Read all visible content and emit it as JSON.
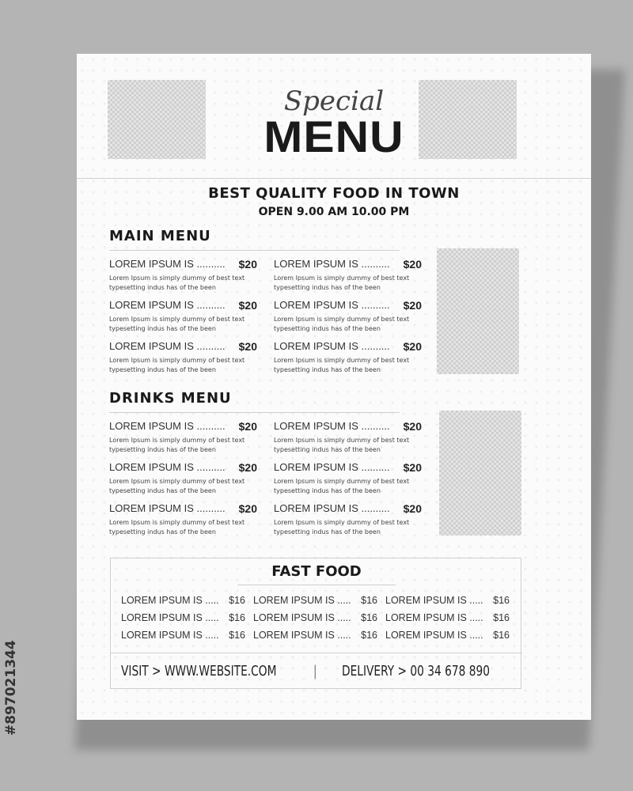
{
  "header": {
    "script_title": "Special",
    "title": "MENU",
    "tagline": "BEST QUALITY FOOD IN TOWN",
    "hours": "OPEN 9.00 AM   10.00 PM"
  },
  "main_menu": {
    "title": "MAIN MENU",
    "items": [
      {
        "name": "LOREM IPSUM IS ..........",
        "price": "$20",
        "desc": "Lorem Ipsum is simply dummy of best text typesetting indus has of the been"
      },
      {
        "name": "LOREM IPSUM IS ..........",
        "price": "$20",
        "desc": "Lorem Ipsum is simply dummy of best text typesetting indus has of the been"
      },
      {
        "name": "LOREM IPSUM IS ..........",
        "price": "$20",
        "desc": "Lorem Ipsum is simply dummy of best text typesetting indus has of the been"
      },
      {
        "name": "LOREM IPSUM IS ..........",
        "price": "$20",
        "desc": "Lorem Ipsum is simply dummy of best text typesetting indus has of the been"
      },
      {
        "name": "LOREM IPSUM IS ..........",
        "price": "$20",
        "desc": "Lorem Ipsum is simply dummy of best text typesetting indus has of the been"
      },
      {
        "name": "LOREM IPSUM IS ..........",
        "price": "$20",
        "desc": "Lorem Ipsum is simply dummy of best text typesetting indus has of the been"
      }
    ]
  },
  "drinks_menu": {
    "title": "DRINKS MENU",
    "items": [
      {
        "name": "LOREM IPSUM IS ..........",
        "price": "$20",
        "desc": "Lorem Ipsum is simply dummy of best text typesetting indus has of the been"
      },
      {
        "name": "LOREM IPSUM IS ..........",
        "price": "$20",
        "desc": "Lorem Ipsum is simply dummy of best text typesetting indus has of the been"
      },
      {
        "name": "LOREM IPSUM IS ..........",
        "price": "$20",
        "desc": "Lorem Ipsum is simply dummy of best text typesetting indus has of the been"
      },
      {
        "name": "LOREM IPSUM IS ..........",
        "price": "$20",
        "desc": "Lorem Ipsum is simply dummy of best text typesetting indus has of the been"
      },
      {
        "name": "LOREM IPSUM IS ..........",
        "price": "$20",
        "desc": "Lorem Ipsum is simply dummy of best text typesetting indus has of the been"
      },
      {
        "name": "LOREM IPSUM IS ..........",
        "price": "$20",
        "desc": "Lorem Ipsum is simply dummy of best text typesetting indus has of the been"
      }
    ]
  },
  "fast_food": {
    "title": "FAST FOOD",
    "items": [
      {
        "name": "LOREM IPSUM IS .....",
        "price": "$16"
      },
      {
        "name": "LOREM IPSUM IS .....",
        "price": "$16"
      },
      {
        "name": "LOREM IPSUM IS .....",
        "price": "$16"
      },
      {
        "name": "LOREM IPSUM IS .....",
        "price": "$16"
      },
      {
        "name": "LOREM IPSUM IS .....",
        "price": "$16"
      },
      {
        "name": "LOREM IPSUM IS .....",
        "price": "$16"
      },
      {
        "name": "LOREM IPSUM IS .....",
        "price": "$16"
      },
      {
        "name": "LOREM IPSUM IS .....",
        "price": "$16"
      },
      {
        "name": "LOREM IPSUM IS .....",
        "price": "$16"
      }
    ]
  },
  "footer": {
    "website": "VISIT > WWW.WEBSITE.COM",
    "separator": "|",
    "delivery": "DELIVERY > 00 34 678 890"
  },
  "watermark": {
    "stock_id": "#897021344"
  }
}
